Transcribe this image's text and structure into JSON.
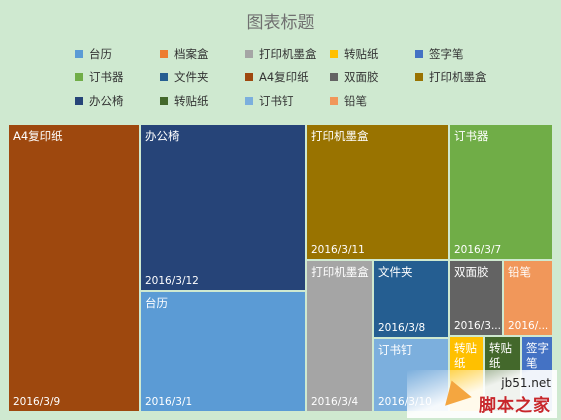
{
  "chart_data": {
    "type": "treemap",
    "title": "图表标题",
    "legend_position": "top",
    "legend": [
      {
        "label": "台历",
        "color": "#5b9bd5"
      },
      {
        "label": "档案盒",
        "color": "#ed7d31"
      },
      {
        "label": "打印机墨盒",
        "color": "#a5a5a5"
      },
      {
        "label": "转贴纸",
        "color": "#ffc000"
      },
      {
        "label": "签字笔",
        "color": "#4472c4"
      },
      {
        "label": "订书器",
        "color": "#70ad47"
      },
      {
        "label": "文件夹",
        "color": "#255e91"
      },
      {
        "label": "A4复印纸",
        "color": "#9e480e"
      },
      {
        "label": "双面胶",
        "color": "#636363"
      },
      {
        "label": "打印机墨盒",
        "color": "#997300"
      },
      {
        "label": "办公椅",
        "color": "#264478"
      },
      {
        "label": "转贴纸",
        "color": "#43682b"
      },
      {
        "label": "订书钉",
        "color": "#7cafdd"
      },
      {
        "label": "铅笔",
        "color": "#f1975a"
      }
    ],
    "tiles": [
      {
        "label": "A4复印纸",
        "date": "2016/3/9",
        "color": "#9e480e",
        "share": 0.2454
      },
      {
        "label": "办公椅",
        "date": "2016/3/12",
        "color": "#264478",
        "share": 0.1676
      },
      {
        "label": "台历",
        "date": "2016/3/1",
        "color": "#5b9bd5",
        "share": 0.1221
      },
      {
        "label": "打印机墨盒",
        "date": "2016/3/11",
        "color": "#997300",
        "share": 0.1437
      },
      {
        "label": "订书器",
        "date": "2016/3/7",
        "color": "#70ad47",
        "share": 0.0988
      },
      {
        "label": "打印机墨盒",
        "date": "2016/3/4",
        "color": "#a5a5a5",
        "share": 0.0625
      },
      {
        "label": "文件夹",
        "date": "2016/3/8",
        "color": "#255e91",
        "share": 0.0442
      },
      {
        "label": "订书钉",
        "date": "2016/3/10",
        "color": "#7cafdd",
        "share": 0.0414
      },
      {
        "label": "双面胶",
        "date": "2016/3...",
        "color": "#636363",
        "share": 0.03
      },
      {
        "label": "铅笔",
        "date": "2016/...",
        "color": "#f1975a",
        "share": 0.03
      },
      {
        "label": "转贴纸",
        "date": "",
        "color": "#ffc000",
        "share": 0.0129
      },
      {
        "label": "转贴纸",
        "date": "",
        "color": "#43682b",
        "share": 0.0136
      },
      {
        "label": "签字笔",
        "date": "",
        "color": "#4472c4",
        "share": 0.0087
      }
    ]
  },
  "watermark": {
    "domain": "jb51.net",
    "logo": "脚本之家"
  }
}
